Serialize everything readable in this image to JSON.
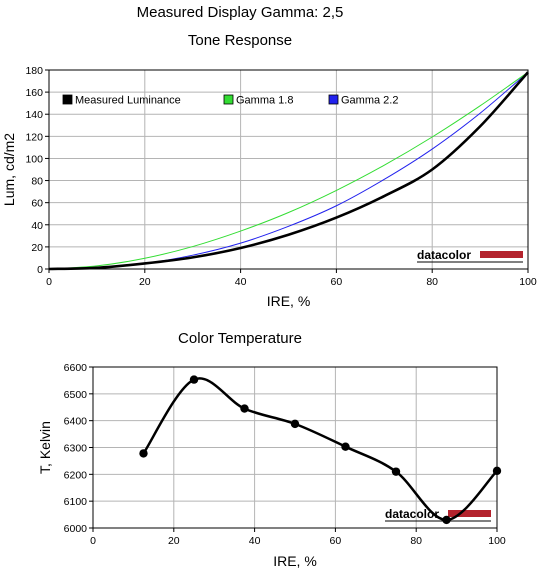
{
  "page_title": "Measured Display Gamma: 2,5",
  "brand": {
    "logo_text": "datacolor",
    "accent_color": "#b4232d"
  },
  "chart_data": [
    {
      "type": "line",
      "title": "Tone Response",
      "xlabel": "IRE, %",
      "ylabel": "Lum, cd/m2",
      "xlim": [
        0,
        100
      ],
      "ylim": [
        0,
        180
      ],
      "xticks": [
        0,
        20,
        40,
        60,
        80,
        100
      ],
      "yticks": [
        0,
        20,
        40,
        60,
        80,
        100,
        120,
        140,
        160,
        180
      ],
      "grid": true,
      "legend_position": "top",
      "series": [
        {
          "name": "Measured Luminance",
          "color": "#000000",
          "x": [
            0,
            10,
            20,
            30,
            40,
            50,
            60,
            70,
            80,
            90,
            100
          ],
          "y": [
            0,
            1.1,
            5,
            10.5,
            19,
            31,
            46.5,
            66,
            90,
            129,
            178
          ]
        },
        {
          "name": "Gamma 1.8",
          "color": "#33dd33",
          "x": [
            0,
            10,
            20,
            30,
            40,
            50,
            60,
            70,
            80,
            90,
            100
          ],
          "y": [
            0,
            2.8,
            9.7,
            20.3,
            34.3,
            51.1,
            71.1,
            93.9,
            119.4,
            147.6,
            178
          ]
        },
        {
          "name": "Gamma 2.2",
          "color": "#2222ee",
          "x": [
            0,
            10,
            20,
            30,
            40,
            50,
            60,
            70,
            80,
            90,
            100
          ],
          "y": [
            0,
            1.1,
            5.1,
            12.5,
            23.4,
            38.6,
            57.2,
            81.1,
            108.5,
            140.9,
            178
          ]
        }
      ]
    },
    {
      "type": "line",
      "title": "Color Temperature",
      "xlabel": "IRE, %",
      "ylabel": "T, Kelvin",
      "xlim": [
        0,
        100
      ],
      "ylim": [
        6000,
        6600
      ],
      "xticks": [
        0,
        20,
        40,
        60,
        80,
        100
      ],
      "yticks": [
        6000,
        6100,
        6200,
        6300,
        6400,
        6500,
        6600
      ],
      "grid": true,
      "series": [
        {
          "name": "",
          "color": "#000000",
          "x": [
            12.5,
            25,
            37.5,
            50,
            62.5,
            75,
            87.5,
            100
          ],
          "y": [
            6278,
            6553,
            6445,
            6388,
            6303,
            6210,
            6030,
            6213
          ]
        }
      ]
    }
  ]
}
